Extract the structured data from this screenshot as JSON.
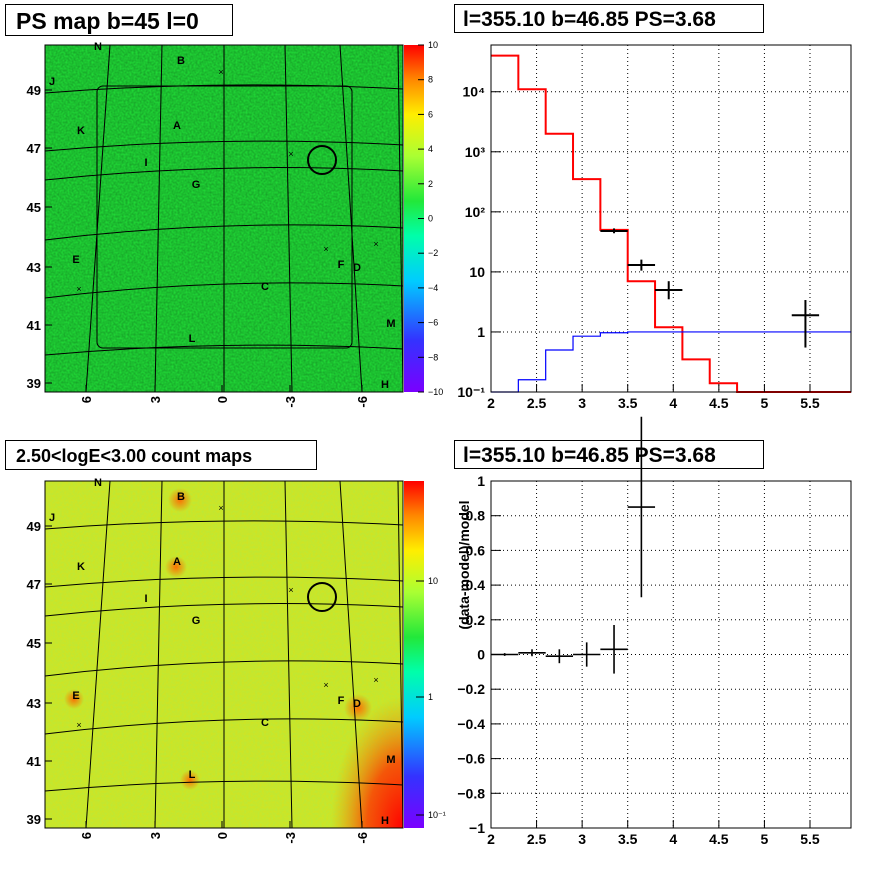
{
  "panels": {
    "ps_map": {
      "title": "PS map b=45 l=0",
      "lat_ticks": [
        "39",
        "41",
        "43",
        "45",
        "47",
        "49"
      ],
      "lon_ticks": [
        "6",
        "3",
        "0",
        "-3",
        "-6"
      ],
      "colorbar_ticks": [
        "10",
        "8",
        "6",
        "4",
        "2",
        "0",
        "−2",
        "−4",
        "−6",
        "−8",
        "−10"
      ],
      "colorbar_range": [
        -10,
        10
      ],
      "labels": [
        "N",
        "B",
        "J",
        "A",
        "K",
        "I",
        "G",
        "E",
        "F",
        "D",
        "C",
        "M",
        "L",
        "H"
      ],
      "background_color": "#22e83a"
    },
    "count_map": {
      "title": "2.50<logE<3.00 count maps",
      "lat_ticks": [
        "39",
        "41",
        "43",
        "45",
        "47",
        "49"
      ],
      "lon_ticks": [
        "6",
        "3",
        "0",
        "-3",
        "-6"
      ],
      "colorbar_ticks": [
        "10",
        "1",
        "10⁻¹"
      ],
      "labels": [
        "N",
        "B",
        "J",
        "A",
        "K",
        "I",
        "G",
        "E",
        "F",
        "D",
        "C",
        "M",
        "L",
        "H"
      ],
      "background_color": "#b8ea3a"
    },
    "spectrum": {
      "title": "l=355.10 b=46.85 PS=3.68",
      "y_ticks": [
        "10⁻¹",
        "1",
        "10",
        "10²",
        "10³",
        "10⁴"
      ],
      "x_ticks": [
        "2",
        "2.5",
        "3",
        "3.5",
        "4",
        "4.5",
        "5",
        "5.5"
      ]
    },
    "residual": {
      "title": "l=355.10 b=46.85 PS=3.68",
      "ylabel": "(data-model)/model",
      "y_ticks": [
        "1",
        "0.8",
        "0.6",
        "0.4",
        "0.2",
        "0",
        "−0.2",
        "−0.4",
        "−0.6",
        "−0.8",
        "−1"
      ],
      "x_ticks": [
        "2",
        "2.5",
        "3",
        "3.5",
        "4",
        "4.5",
        "5",
        "5.5"
      ]
    }
  },
  "chart_data": [
    {
      "type": "heatmap",
      "title": "PS map b=45 l=0",
      "xlim": [
        8,
        -10
      ],
      "ylim": [
        38.9,
        50.4
      ],
      "zlim": [
        -10,
        10
      ],
      "circle_center": [
        -4.3,
        46.6
      ]
    },
    {
      "type": "heatmap",
      "title": "2.50<logE<3.00 count maps",
      "xlim": [
        8,
        -10
      ],
      "ylim": [
        38.9,
        50.4
      ],
      "zscale": "log",
      "circle_center": [
        -4.3,
        46.6
      ]
    },
    {
      "type": "line",
      "title": "l=355.10 b=46.85 PS=3.68",
      "xlim": [
        2,
        5.95
      ],
      "ylim": [
        0.1,
        60000
      ],
      "yscale": "log",
      "grid": true,
      "series": [
        {
          "color": "#ff0000",
          "style": "step",
          "edges": [
            2,
            2.3,
            2.6,
            2.9,
            3.2,
            3.5,
            3.8,
            4.1,
            4.4,
            4.7,
            5.0,
            5.3,
            5.6,
            5.95
          ],
          "values": [
            40000,
            11000,
            2000,
            350,
            50,
            7,
            1.2,
            0.35,
            0.14,
            0.1,
            0.1,
            0.1,
            0.1
          ]
        },
        {
          "color": "#0000ff",
          "style": "step",
          "edges": [
            2,
            2.3,
            2.6,
            2.9,
            3.2,
            3.5,
            3.8,
            4.1,
            4.4,
            4.7,
            5.0,
            5.3,
            5.6,
            5.95
          ],
          "values": [
            0.1,
            0.16,
            0.5,
            0.85,
            0.97,
            1,
            1,
            1,
            1,
            1,
            1,
            1,
            1
          ]
        },
        {
          "color": "#000000",
          "style": "errorbar",
          "points": [
            {
              "x": 3.35,
              "y": 48,
              "xerr": 0.15,
              "ylo": 44,
              "yhi": 53
            },
            {
              "x": 3.65,
              "y": 13,
              "xerr": 0.15,
              "ylo": 10.5,
              "yhi": 16
            },
            {
              "x": 3.95,
              "y": 5,
              "xerr": 0.15,
              "ylo": 3.5,
              "yhi": 7
            },
            {
              "x": 5.45,
              "y": 1.9,
              "xerr": 0.15,
              "ylo": 0.55,
              "yhi": 3.4
            }
          ]
        }
      ]
    },
    {
      "type": "scatter",
      "title": "l=355.10 b=46.85 PS=3.68",
      "xlim": [
        2,
        5.95
      ],
      "ylim": [
        -1,
        1
      ],
      "ylabel": "(data-model)/model",
      "grid": true,
      "points": [
        {
          "x": 2.15,
          "y": 0.0,
          "xerr": 0.15,
          "yerr": 0.008
        },
        {
          "x": 2.45,
          "y": 0.01,
          "xerr": 0.15,
          "yerr": 0.02
        },
        {
          "x": 2.75,
          "y": -0.01,
          "xerr": 0.15,
          "yerr": 0.04
        },
        {
          "x": 3.05,
          "y": 0.0,
          "xerr": 0.15,
          "yerr": 0.07
        },
        {
          "x": 3.35,
          "y": 0.03,
          "xerr": 0.15,
          "yerr": 0.14
        },
        {
          "x": 3.65,
          "y": 0.85,
          "xerr": 0.15,
          "yerr": 0.52
        }
      ]
    }
  ]
}
